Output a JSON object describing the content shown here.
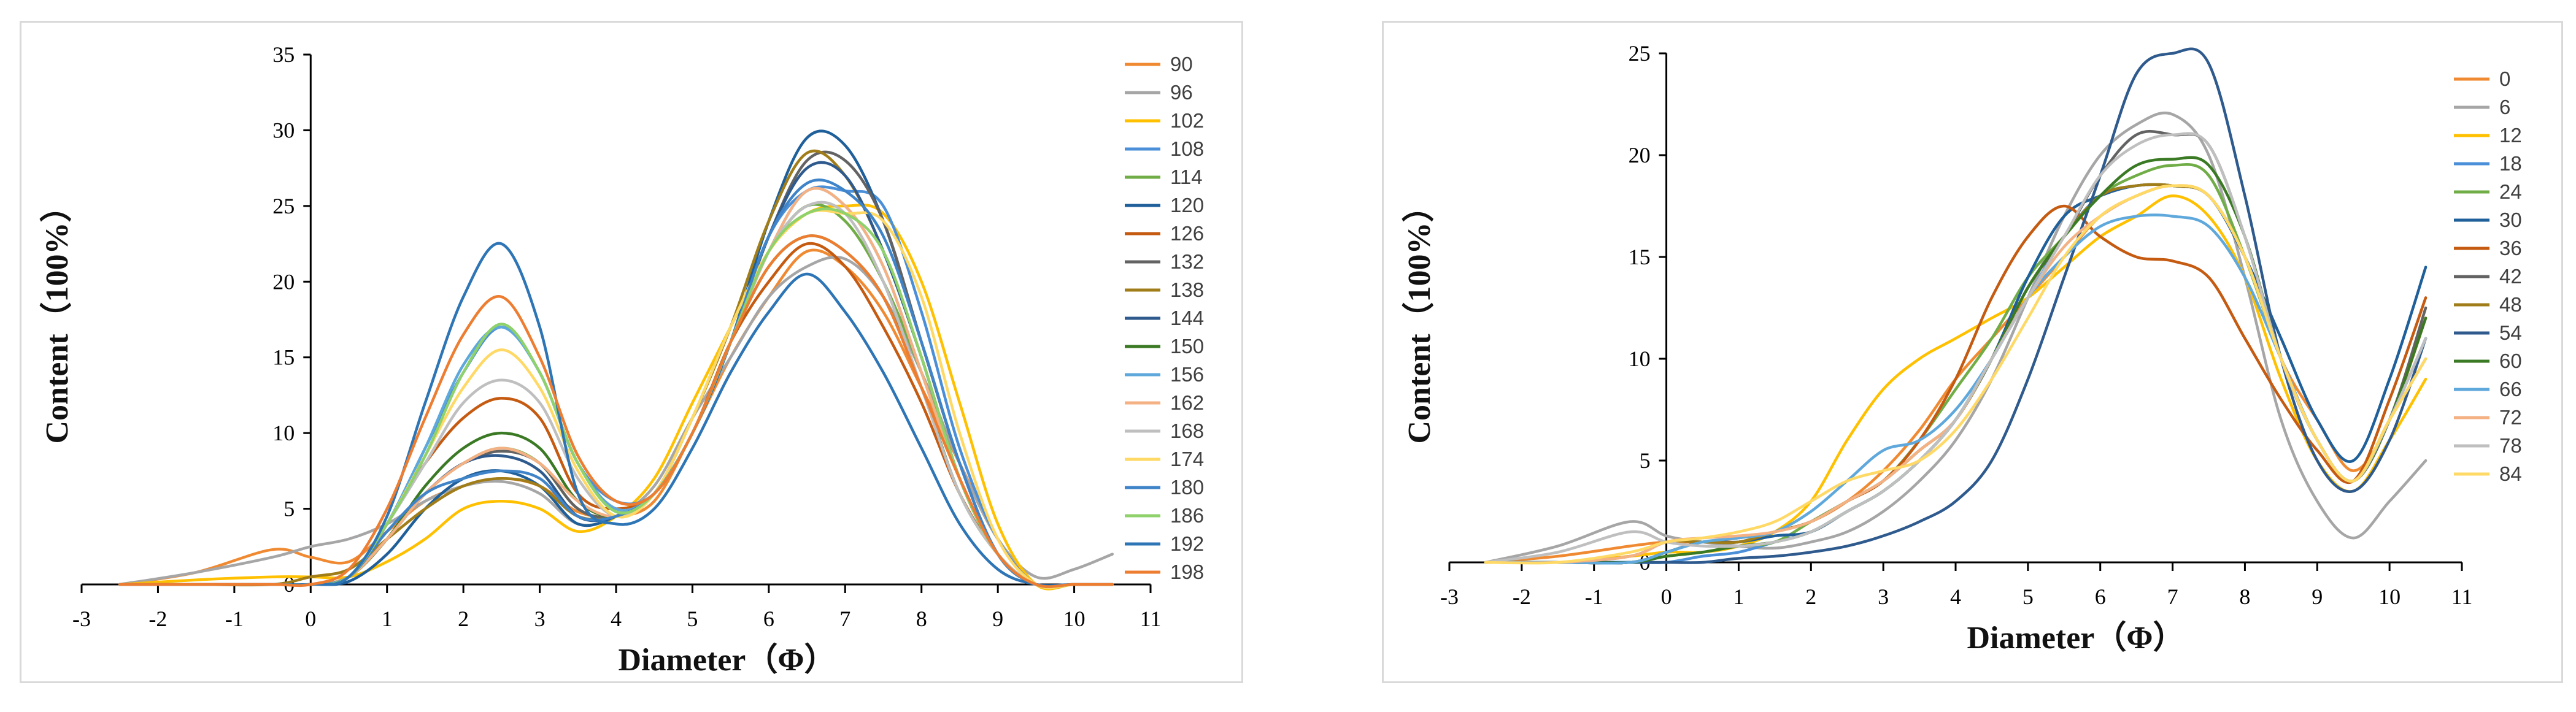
{
  "colors": {
    "palette": [
      "#f08a32",
      "#a6a6a6",
      "#ffc000",
      "#4a8fd8",
      "#70ad47",
      "#1f5f9a",
      "#c55a11",
      "#636363",
      "#a07d18",
      "#2e5a8e",
      "#3b7a24",
      "#5fa8dc",
      "#f4b183",
      "#bfbfbf",
      "#ffd966",
      "#3f84c8",
      "#8fd16b",
      "#2e75b6",
      "#ed7d31"
    ]
  },
  "chart_data": [
    {
      "type": "line",
      "xlabel": "Diameter（Φ）",
      "ylabel": "Content（100%）",
      "xlim": [
        -3,
        11
      ],
      "ylim": [
        0,
        35
      ],
      "xticks": [
        "-3",
        "-2",
        "-1",
        "0",
        "1",
        "2",
        "3",
        "4",
        "5",
        "6",
        "7",
        "8",
        "9",
        "10",
        "11"
      ],
      "yticks": [
        "0",
        "5",
        "10",
        "15",
        "20",
        "25",
        "30",
        "35"
      ],
      "legend_position": "right",
      "x": [
        -2.5,
        -1.5,
        -0.5,
        0,
        0.5,
        1,
        1.5,
        2,
        2.5,
        3,
        3.5,
        4,
        4.5,
        5,
        5.5,
        6,
        6.5,
        7,
        7.5,
        8,
        8.5,
        9,
        9.5,
        10,
        10.5
      ],
      "series": [
        {
          "name": "90",
          "values": [
            0,
            0.8,
            2.3,
            1.8,
            1.5,
            3.5,
            5.5,
            6.5,
            7,
            6.5,
            4.8,
            4.5,
            5.5,
            10,
            15,
            19,
            22,
            21,
            18,
            13,
            8,
            3,
            0,
            0,
            0
          ]
        },
        {
          "name": "96",
          "values": [
            0,
            0.8,
            1.8,
            2.5,
            3,
            4,
            5.5,
            6.5,
            6.8,
            6,
            4,
            4.5,
            6.5,
            11,
            15,
            19,
            21,
            21.5,
            19,
            14,
            8,
            3,
            0.5,
            1,
            2
          ]
        },
        {
          "name": "102",
          "values": [
            0,
            0.3,
            0.5,
            0.5,
            0.5,
            1.5,
            3,
            5,
            5.5,
            5,
            3.5,
            4.5,
            7,
            12,
            17,
            22,
            24.5,
            25,
            24.5,
            20,
            12,
            4,
            0,
            0,
            0
          ]
        },
        {
          "name": "108",
          "values": [
            0,
            0,
            0,
            0,
            0.5,
            4,
            9,
            14,
            17,
            14,
            8,
            5.5,
            6,
            10,
            16,
            23,
            26,
            26,
            25,
            18,
            9,
            3,
            0,
            0,
            0
          ]
        },
        {
          "name": "114",
          "values": [
            0,
            0,
            0,
            0,
            0.5,
            3,
            6,
            8,
            9,
            8,
            5,
            4.5,
            6,
            11,
            17,
            22,
            25,
            24,
            20,
            14,
            7,
            2,
            0,
            0,
            0
          ]
        },
        {
          "name": "120",
          "values": [
            0,
            0,
            0,
            0,
            0.2,
            2,
            5,
            7,
            7.5,
            6.5,
            4,
            4.5,
            6,
            10,
            16,
            24,
            29.5,
            29,
            24,
            16,
            8,
            2,
            0,
            0,
            0
          ]
        },
        {
          "name": "126",
          "values": [
            0,
            0,
            0,
            0,
            0.5,
            4,
            8,
            11,
            12.3,
            11,
            6,
            5,
            6,
            10,
            16,
            20,
            22.5,
            21,
            17,
            12,
            6,
            2,
            0,
            0,
            0
          ]
        },
        {
          "name": "132",
          "values": [
            0,
            0,
            0,
            0,
            0.5,
            3,
            6,
            8,
            8.8,
            8,
            5,
            4.5,
            6,
            10,
            16,
            23,
            28,
            28,
            24,
            16,
            8,
            2,
            0,
            0,
            0
          ]
        },
        {
          "name": "138",
          "values": [
            0,
            0,
            0,
            0.5,
            1,
            3,
            5,
            6.5,
            7,
            6.5,
            4.5,
            4.5,
            6,
            11,
            17,
            24,
            28.5,
            27,
            22,
            15,
            7,
            2,
            0,
            0,
            0
          ]
        },
        {
          "name": "144",
          "values": [
            0,
            0,
            0,
            0,
            0.5,
            3,
            6,
            8,
            8.5,
            7.5,
            4.5,
            4.5,
            6,
            10,
            16,
            23,
            27.5,
            27,
            22,
            15,
            7,
            2,
            0,
            0,
            0
          ]
        },
        {
          "name": "150",
          "values": [
            0,
            0,
            0,
            0,
            0.5,
            3,
            6.5,
            9,
            10,
            9,
            5.5,
            4.5,
            6,
            10,
            16,
            21,
            23,
            22,
            19,
            13,
            6,
            2,
            0,
            0,
            0
          ]
        },
        {
          "name": "156",
          "values": [
            0,
            0,
            0,
            0,
            0.5,
            4,
            9,
            14.5,
            17,
            14,
            8,
            5,
            6,
            10,
            16,
            22,
            26,
            25,
            21,
            14,
            7,
            2,
            0,
            0,
            0
          ]
        },
        {
          "name": "162",
          "values": [
            0,
            0,
            0,
            0,
            0.5,
            3,
            6,
            8,
            9,
            8,
            5.5,
            4.5,
            6,
            10,
            16,
            22,
            26,
            25,
            21,
            14,
            7,
            2,
            0,
            0,
            0
          ]
        },
        {
          "name": "168",
          "values": [
            0,
            0,
            0,
            0,
            0.5,
            4,
            8,
            12,
            13.5,
            12,
            7,
            4.5,
            6,
            10,
            16,
            22,
            25,
            24.5,
            20,
            13,
            6,
            2,
            0,
            0,
            0
          ]
        },
        {
          "name": "174",
          "values": [
            0,
            0,
            0,
            0,
            0.5,
            4,
            8.5,
            13,
            15.5,
            13,
            7.5,
            4.5,
            6,
            11,
            17,
            22,
            24.5,
            24.5,
            24,
            19,
            10,
            3,
            0,
            0,
            0
          ]
        },
        {
          "name": "180",
          "values": [
            0,
            0,
            0,
            0,
            0.5,
            3.5,
            6,
            7,
            7.5,
            7,
            4.5,
            4.5,
            6,
            10,
            16,
            23,
            26.5,
            26,
            23,
            16,
            8,
            2,
            0,
            0,
            0
          ]
        },
        {
          "name": "186",
          "values": [
            0,
            0,
            0,
            0,
            0.5,
            4,
            8.5,
            14,
            17.2,
            14,
            8,
            4.8,
            6,
            10,
            16,
            22,
            24.5,
            24.5,
            22,
            15,
            7,
            2,
            0,
            0,
            0
          ]
        },
        {
          "name": "192",
          "values": [
            0,
            0,
            0,
            0,
            0.5,
            4.5,
            12,
            19,
            22.5,
            17,
            6,
            4,
            5,
            9,
            14,
            18,
            20.5,
            18,
            14,
            9,
            4,
            1,
            0,
            0,
            0
          ]
        },
        {
          "name": "198",
          "values": [
            0,
            0,
            0,
            0,
            1,
            5,
            11,
            16.5,
            19,
            15,
            8.5,
            5.5,
            6,
            10,
            16,
            21,
            23,
            22,
            19,
            13,
            7,
            2,
            0,
            0,
            0
          ]
        }
      ]
    },
    {
      "type": "line",
      "xlabel": "Diameter（Φ）",
      "ylabel": "Content（100%）",
      "xlim": [
        -3,
        11
      ],
      "ylim": [
        0,
        25
      ],
      "xticks": [
        "-3",
        "-2",
        "-1",
        "0",
        "1",
        "2",
        "3",
        "4",
        "5",
        "6",
        "7",
        "8",
        "9",
        "10",
        "11"
      ],
      "yticks": [
        "0",
        "5",
        "10",
        "15",
        "20",
        "25"
      ],
      "legend_position": "right",
      "x": [
        -2.5,
        -1.5,
        -0.5,
        0,
        0.5,
        1,
        1.5,
        2,
        2.5,
        3,
        3.5,
        4,
        4.5,
        5,
        5.5,
        6,
        6.5,
        7,
        7.5,
        8,
        8.5,
        9,
        9.5,
        10,
        10.5
      ],
      "series": [
        {
          "name": "0",
          "values": [
            0,
            0.3,
            0.8,
            1,
            1,
            1.2,
            1.5,
            2,
            3,
            4.5,
            6.5,
            9,
            11,
            13,
            15,
            17,
            18,
            18.5,
            18,
            15,
            10,
            7,
            4.5,
            7,
            12
          ]
        },
        {
          "name": "6",
          "values": [
            0,
            0.8,
            2,
            1.3,
            1,
            0.8,
            0.7,
            1,
            1.5,
            2.5,
            4,
            6,
            9,
            13,
            17,
            20,
            21.5,
            22,
            20,
            14,
            7,
            3,
            1.2,
            3,
            5
          ]
        },
        {
          "name": "12",
          "values": [
            0,
            0,
            0.3,
            0.5,
            0.5,
            0.8,
            1.5,
            3,
            6,
            8.5,
            10,
            11,
            12,
            13,
            14.5,
            16,
            17,
            18,
            17,
            14,
            9,
            5,
            3.5,
            6,
            9
          ]
        },
        {
          "name": "18",
          "values": [
            0,
            0,
            0,
            0,
            0.3,
            0.5,
            1,
            1.5,
            2.5,
            3.5,
            5,
            7,
            10,
            13,
            16,
            18,
            18.5,
            18.5,
            18,
            15,
            10,
            6,
            4,
            7,
            11
          ]
        },
        {
          "name": "24",
          "values": [
            0,
            0,
            0,
            0.3,
            0.5,
            0.8,
            1,
            2,
            3,
            4,
            6,
            8.5,
            11,
            14,
            16,
            18,
            19,
            19.5,
            19,
            15,
            10,
            6,
            4,
            7,
            10
          ]
        },
        {
          "name": "30",
          "values": [
            0,
            0,
            0,
            0.5,
            1,
            1,
            1.3,
            1.5,
            2.5,
            3.5,
            5,
            7,
            10,
            14,
            17,
            18,
            18.5,
            18.5,
            18,
            15,
            11,
            7,
            5,
            9,
            14.5
          ]
        },
        {
          "name": "36",
          "values": [
            0,
            0,
            0,
            0.5,
            1,
            1,
            1.5,
            2,
            3,
            4,
            6,
            9,
            13,
            16,
            17.5,
            16,
            15,
            14.8,
            14,
            11,
            8,
            5.5,
            4,
            8,
            13
          ]
        },
        {
          "name": "42",
          "values": [
            0,
            0,
            0,
            0.5,
            1,
            1,
            1.5,
            2,
            3,
            4,
            5.5,
            7,
            10,
            13.5,
            16,
            19,
            21,
            21,
            20.5,
            16,
            10,
            6,
            4,
            7,
            12.5
          ]
        },
        {
          "name": "48",
          "values": [
            0,
            0,
            0.3,
            1,
            1,
            1,
            1.5,
            2,
            3,
            4,
            5.5,
            7,
            10,
            13.5,
            16,
            18,
            18.5,
            18.5,
            18,
            15,
            10,
            6,
            4,
            7,
            12
          ]
        },
        {
          "name": "54",
          "values": [
            0,
            0,
            0,
            0,
            0,
            0.2,
            0.3,
            0.5,
            0.8,
            1.3,
            2,
            3,
            5,
            9,
            14,
            19,
            24,
            25,
            24.5,
            18,
            10,
            5,
            3.5,
            6,
            11
          ]
        },
        {
          "name": "60",
          "values": [
            0,
            0,
            0,
            0.3,
            0.5,
            0.8,
            1,
            1.5,
            2.5,
            3.5,
            5,
            7,
            10,
            13.5,
            16,
            18,
            19.5,
            19.8,
            19.5,
            16,
            10,
            6,
            4,
            7,
            12
          ]
        },
        {
          "name": "66",
          "values": [
            0,
            0,
            0,
            0.5,
            1,
            1.2,
            1.5,
            2.5,
            4,
            5.5,
            6,
            7.5,
            10,
            13,
            15,
            16.5,
            17,
            17,
            16.5,
            14,
            10,
            6,
            4,
            7,
            11
          ]
        },
        {
          "name": "72",
          "values": [
            0,
            0,
            0.3,
            1,
            1.2,
            1.3,
            1.5,
            2,
            3,
            4,
            5.5,
            7,
            10,
            13,
            15.5,
            17,
            18,
            18.5,
            18,
            15,
            10,
            6,
            4,
            7,
            10
          ]
        },
        {
          "name": "78",
          "values": [
            0,
            0.5,
            1.5,
            1,
            0.8,
            0.8,
            1,
            1.5,
            2.5,
            3.5,
            5,
            7,
            10,
            13,
            16,
            19,
            20.5,
            21,
            20.5,
            16,
            10,
            6,
            4,
            7,
            11
          ]
        },
        {
          "name": "84",
          "values": [
            0,
            0,
            0.5,
            1,
            1.2,
            1.5,
            2,
            3,
            4,
            4.5,
            5,
            6.5,
            9,
            12,
            15,
            17,
            18,
            18.5,
            18,
            15,
            10,
            6,
            4,
            7,
            10
          ]
        }
      ]
    }
  ]
}
